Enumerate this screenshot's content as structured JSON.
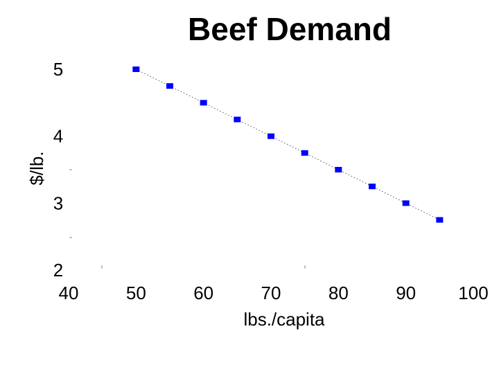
{
  "chart_data": {
    "type": "scatter",
    "title": "Beef Demand",
    "xlabel": "lbs./capita",
    "ylabel": "$/lb.",
    "xlim": [
      40,
      100
    ],
    "ylim": [
      2,
      5
    ],
    "x_ticks": [
      "40",
      "50",
      "60",
      "70",
      "80",
      "90",
      "100"
    ],
    "y_ticks": [
      "2",
      "3",
      "4",
      "5"
    ],
    "grid": false,
    "series": [
      {
        "x": [
          50,
          55,
          60,
          65,
          70,
          75,
          80,
          85,
          90,
          95
        ],
        "y": [
          5,
          4.75,
          4.5,
          4.25,
          4,
          3.75,
          3.5,
          3.25,
          3,
          2.75
        ],
        "color": "#0000ff",
        "marker": "square",
        "line_style": "dotted"
      }
    ]
  }
}
